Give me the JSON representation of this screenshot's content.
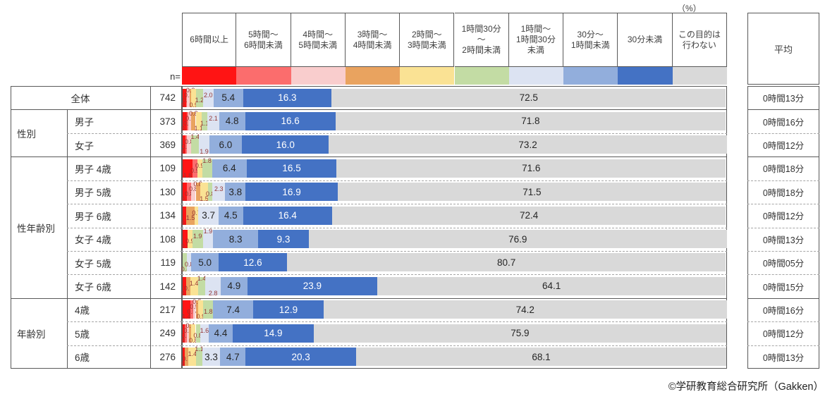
{
  "ui": {
    "unit_label": "（%）",
    "n_label": "n=",
    "average_header": "平均",
    "footer": "©学研教育総合研究所（Gakken）"
  },
  "chart_data": {
    "type": "bar",
    "variant": "horizontal-stacked-100pct",
    "unit": "%",
    "xlim": [
      0,
      100
    ],
    "legend_position": "top",
    "grid": false,
    "categories": [
      "6時間以上",
      "5時間〜\n6時間未満",
      "4時間〜\n5時間未満",
      "3時間〜\n4時間未満",
      "2時間〜\n3時間未満",
      "1時間30分\n〜\n2時間未満",
      "1時間〜\n1時間30分\n未満",
      "30分〜\n1時間未満",
      "30分未満",
      "この目的は\n行わない"
    ],
    "colors": [
      "#ff1414",
      "#fb6d6d",
      "#f9cdcd",
      "#e9a35f",
      "#fae294",
      "#c3dca4",
      "#dce3f2",
      "#92aedc",
      "#4472c4",
      "#d9d9d9"
    ],
    "label_colors": {
      "small": "#943634",
      "inside": "#262626",
      "on_blue": "#ffffff"
    },
    "rows": [
      {
        "group": "",
        "label": "全体",
        "n": 742,
        "values": [
          0.7,
          0.1,
          0.5,
          0.3,
          0.9,
          1.2,
          2.0,
          5.4,
          16.3,
          72.5
        ],
        "average": "0時間13分"
      },
      {
        "group": "性別",
        "label": "男子",
        "n": 373,
        "values": [
          0.8,
          0.3,
          0.5,
          0.8,
          1.1,
          1.1,
          2.1,
          4.8,
          16.6,
          71.8
        ],
        "average": "0時間16分"
      },
      {
        "group": "性別",
        "label": "女子",
        "n": 369,
        "values": [
          0.5,
          0.3,
          0.8,
          0,
          0,
          1.4,
          1.9,
          6.0,
          16.0,
          73.2
        ],
        "average": "0時間12分"
      },
      {
        "group": "性年齢別",
        "label": "男子 4歳",
        "n": 109,
        "values": [
          1.8,
          0.9,
          0,
          0,
          0.9,
          1.8,
          0,
          6.4,
          16.5,
          71.6
        ],
        "average": "0時間18分"
      },
      {
        "group": "性年齢別",
        "label": "男子 5歳",
        "n": 130,
        "values": [
          0.8,
          0.8,
          0.8,
          0.8,
          1.5,
          0.8,
          2.3,
          3.8,
          16.9,
          71.5
        ],
        "average": "0時間18分"
      },
      {
        "group": "性年齢別",
        "label": "男子 6歳",
        "n": 134,
        "values": [
          0.7,
          0,
          0,
          1.5,
          0.7,
          0,
          3.7,
          4.5,
          16.4,
          72.4
        ],
        "average": "0時間12分"
      },
      {
        "group": "性年齢別",
        "label": "女子 4歳",
        "n": 108,
        "values": [
          0.9,
          0,
          0,
          0,
          0.9,
          1.9,
          1.9,
          8.3,
          9.3,
          76.9
        ],
        "average": "0時間13分"
      },
      {
        "group": "性年齢別",
        "label": "女子 5歳",
        "n": 119,
        "values": [
          0,
          0,
          0,
          0,
          0,
          0.8,
          0.8,
          5.0,
          12.6,
          80.7
        ],
        "average": "0時間05分"
      },
      {
        "group": "性年齢別",
        "label": "女子 6歳",
        "n": 142,
        "values": [
          0.7,
          0,
          0,
          0.7,
          1.4,
          1.4,
          2.8,
          4.9,
          23.9,
          64.1
        ],
        "average": "0時間15分"
      },
      {
        "group": "年齢別",
        "label": "4歳",
        "n": 217,
        "values": [
          1.4,
          0.5,
          0.5,
          0.5,
          0.9,
          1.8,
          0,
          7.4,
          12.9,
          74.2
        ],
        "average": "0時間16分"
      },
      {
        "group": "年齢別",
        "label": "5歳",
        "n": 249,
        "values": [
          0.4,
          0.4,
          0.4,
          0.4,
          0.8,
          0.8,
          1.6,
          4.4,
          14.9,
          75.9
        ],
        "average": "0時間12分"
      },
      {
        "group": "年齢別",
        "label": "6歳",
        "n": 276,
        "values": [
          0.4,
          0,
          0,
          0.7,
          1.4,
          1.1,
          3.3,
          4.7,
          20.3,
          68.1
        ],
        "average": "0時間13分"
      }
    ]
  }
}
